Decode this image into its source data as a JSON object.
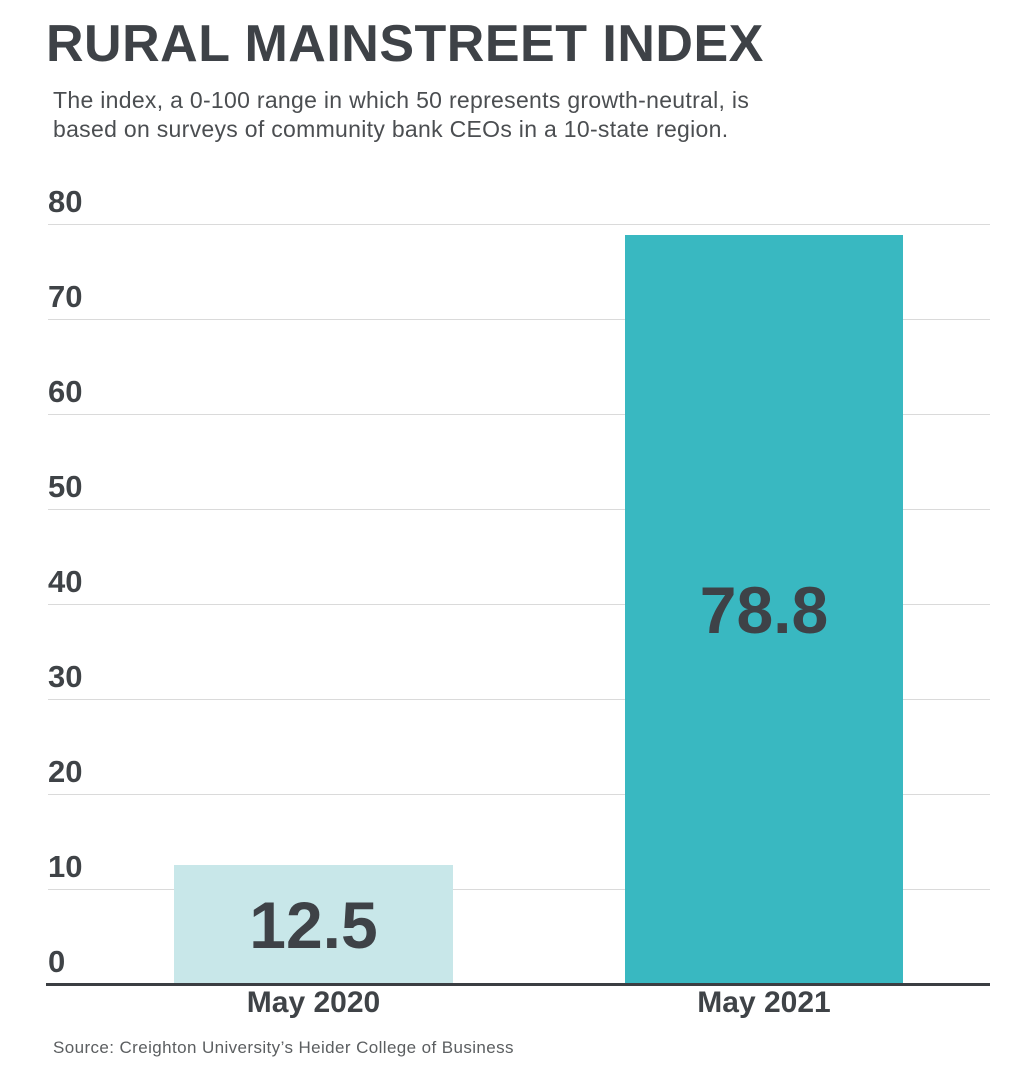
{
  "header": {
    "title": "RURAL MAINSTREET INDEX",
    "subtitle_line1": "The index, a 0-100 range in which 50 represents growth-neutral, is",
    "subtitle_line2": "based on surveys of community bank CEOs in a 10-state region."
  },
  "chart_data": {
    "type": "bar",
    "title": "RURAL MAINSTREET INDEX",
    "subtitle": "The index, a 0-100 range in which 50 represents growth-neutral, is based on surveys of community bank CEOs in a 10-state region.",
    "categories": [
      "May 2020",
      "May 2021"
    ],
    "values": [
      12.5,
      78.8
    ],
    "value_labels": [
      "12.5",
      "78.8"
    ],
    "yticks": [
      0,
      10,
      20,
      30,
      40,
      50,
      60,
      70,
      80
    ],
    "ytick_labels": [
      "0",
      "10",
      "20",
      "30",
      "40",
      "50",
      "60",
      "70",
      "80"
    ],
    "ylim": [
      0,
      80
    ],
    "grid": true,
    "legend": false,
    "bar_colors": [
      "#c8e7e9",
      "#39b8c1"
    ],
    "gridline_color": "#dadada",
    "axis_color": "#3b3e42",
    "text_color": "#3e4247"
  },
  "footer": {
    "source": "Source: Creighton University’s Heider College of Business"
  }
}
